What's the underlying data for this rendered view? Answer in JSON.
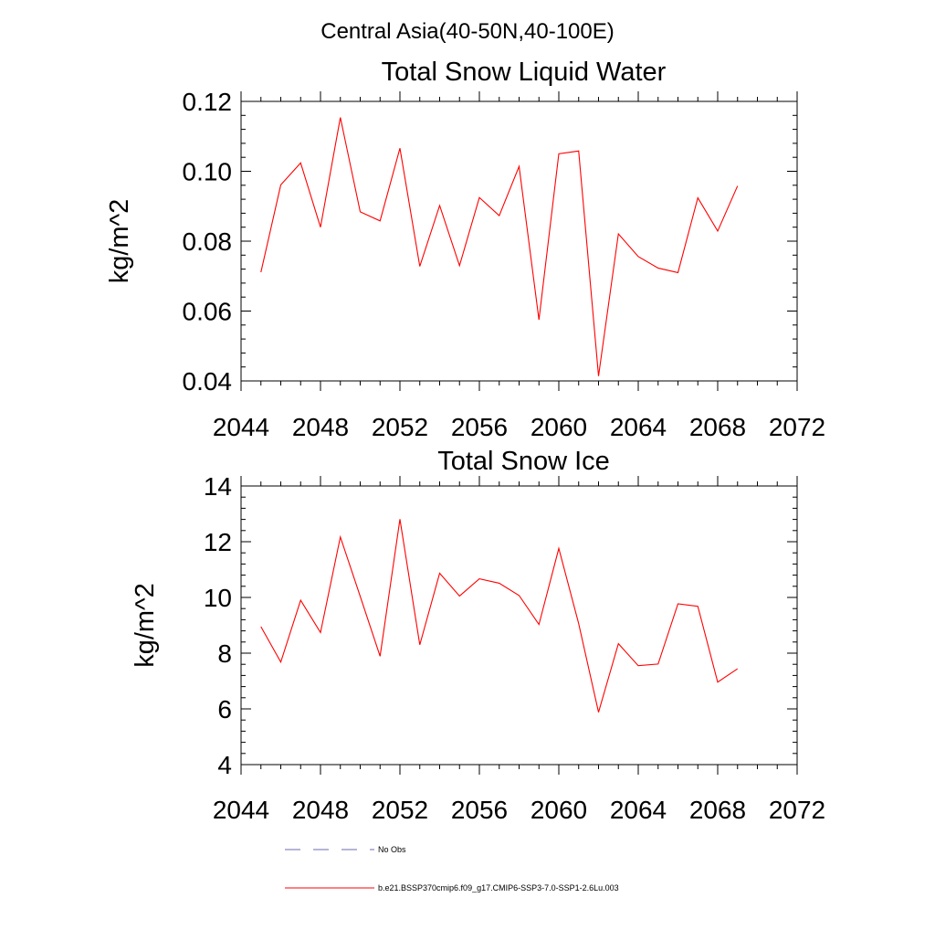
{
  "suptitle": "Central Asia(40-50N,40-100E)",
  "colors": {
    "series": "#ff0000",
    "no_obs": "#6b6bb0",
    "axis": "#000000"
  },
  "legend": {
    "entries": [
      {
        "label": "No Obs",
        "style": "dashed"
      },
      {
        "label": "b.e21.BSSP370cmip6.f09_g17.CMIP6-SSP3-7.0-SSP1-2.6Lu.003",
        "style": "solid"
      }
    ]
  },
  "chart_data": [
    {
      "type": "line",
      "title": "Total Snow Liquid Water",
      "xlabel": "",
      "ylabel": "kg/m^2",
      "xlim": [
        2044,
        2072
      ],
      "ylim": [
        0.04,
        0.12
      ],
      "xticks": [
        2044,
        2048,
        2052,
        2056,
        2060,
        2064,
        2068,
        2072
      ],
      "xtick_labels": [
        "2044",
        "2048",
        "2052",
        "2056",
        "2060",
        "2064",
        "2068",
        "2072"
      ],
      "yticks": [
        0.04,
        0.06,
        0.08,
        0.1,
        0.12
      ],
      "ytick_labels": [
        "0.04",
        "0.06",
        "0.08",
        "0.10",
        "0.12"
      ],
      "grid": false,
      "series": [
        {
          "name": "b.e21.BSSP370cmip6.f09_g17.CMIP6-SSP3-7.0-SSP1-2.6Lu.003",
          "x": [
            2045,
            2046,
            2047,
            2048,
            2049,
            2050,
            2051,
            2052,
            2053,
            2054,
            2055,
            2056,
            2057,
            2058,
            2059,
            2060,
            2061,
            2062,
            2063,
            2064,
            2065,
            2066,
            2067,
            2068,
            2069
          ],
          "values": [
            0.0711,
            0.0961,
            0.1024,
            0.084,
            0.1154,
            0.0884,
            0.0858,
            0.1066,
            0.0728,
            0.0902,
            0.073,
            0.0925,
            0.0873,
            0.1014,
            0.0575,
            0.105,
            0.1058,
            0.0414,
            0.0821,
            0.0756,
            0.0723,
            0.071,
            0.0924,
            0.0829,
            0.0958
          ]
        }
      ]
    },
    {
      "type": "line",
      "title": "Total Snow Ice",
      "xlabel": "",
      "ylabel": "kg/m^2",
      "xlim": [
        2044,
        2072
      ],
      "ylim": [
        4,
        14
      ],
      "xticks": [
        2044,
        2048,
        2052,
        2056,
        2060,
        2064,
        2068,
        2072
      ],
      "xtick_labels": [
        "2044",
        "2048",
        "2052",
        "2056",
        "2060",
        "2064",
        "2068",
        "2072"
      ],
      "yticks": [
        4,
        6,
        8,
        10,
        12,
        14
      ],
      "ytick_labels": [
        "4",
        "6",
        "8",
        "10",
        "12",
        "14"
      ],
      "grid": false,
      "series": [
        {
          "name": "b.e21.BSSP370cmip6.f09_g17.CMIP6-SSP3-7.0-SSP1-2.6Lu.003",
          "x": [
            2045,
            2046,
            2047,
            2048,
            2049,
            2050,
            2051,
            2052,
            2053,
            2054,
            2055,
            2056,
            2057,
            2058,
            2059,
            2060,
            2061,
            2062,
            2063,
            2064,
            2065,
            2066,
            2067,
            2068,
            2069
          ],
          "values": [
            8.95,
            7.68,
            9.9,
            8.74,
            12.17,
            10.04,
            7.89,
            12.81,
            8.3,
            10.87,
            10.05,
            10.67,
            10.51,
            10.07,
            9.03,
            11.76,
            9.06,
            5.88,
            8.34,
            7.55,
            7.61,
            9.77,
            9.68,
            6.96,
            7.44
          ]
        }
      ]
    }
  ]
}
